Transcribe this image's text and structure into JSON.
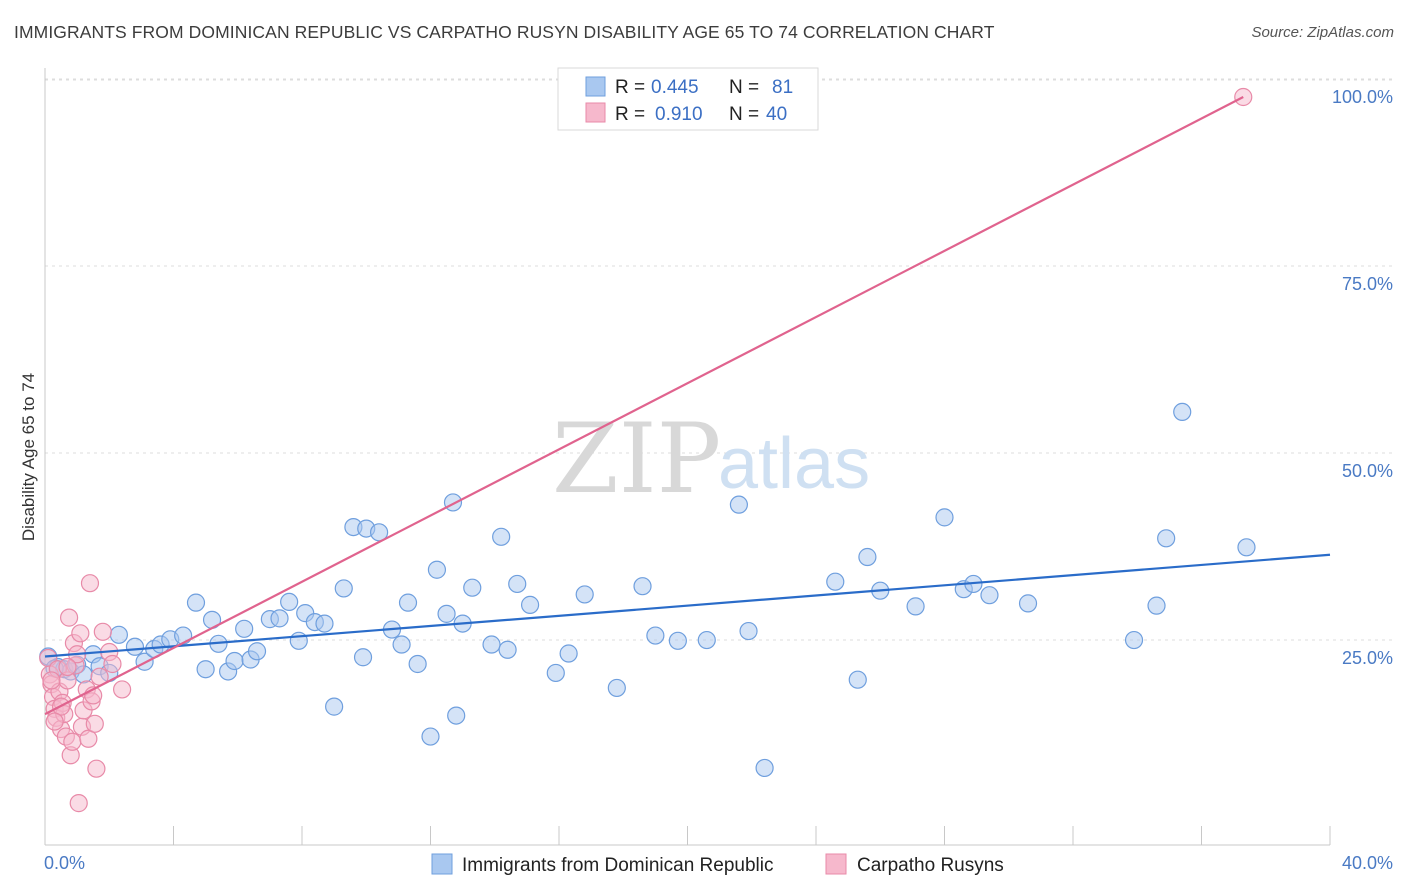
{
  "title": "IMMIGRANTS FROM DOMINICAN REPUBLIC VS CARPATHO RUSYN DISABILITY AGE 65 TO 74 CORRELATION CHART",
  "source": "Source: ZipAtlas.com",
  "watermark": {
    "zip": "ZIP",
    "atlas": "atlas"
  },
  "legend": {
    "rows": [
      {
        "r_label": "R = ",
        "r_value": "0.445",
        "n_label": "N = ",
        "n_value": "81",
        "color": "#a9c8f0"
      },
      {
        "r_label": "R = ",
        "r_value": "0.910",
        "n_label": "N = ",
        "n_value": "40",
        "color": "#f6b8cc"
      }
    ]
  },
  "bottom_legend": [
    {
      "label": "Immigrants from Dominican Republic",
      "color": "#a9c8f0"
    },
    {
      "label": "Carpatho Rusyns",
      "color": "#f6b8cc"
    }
  ],
  "chart_data": {
    "type": "scatter",
    "ylabel": "Disability Age 65 to 74",
    "xlabel": "",
    "xlim": [
      0,
      40
    ],
    "ylim": [
      0,
      100
    ],
    "x_tick_labels": [
      "0.0%",
      "40.0%"
    ],
    "y_ticks": [
      25,
      50,
      75,
      100
    ],
    "y_tick_labels": [
      "25.0%",
      "50.0%",
      "75.0%",
      "100.0%"
    ],
    "grid": "horizontal dashed",
    "series": [
      {
        "name": "Immigrants from Dominican Republic",
        "color": "#a9c8f0",
        "stroke": "#6f9fde",
        "trend_color": "#2a6cc9",
        "trend": {
          "x": [
            0,
            40
          ],
          "y": [
            25.2,
            38.8
          ]
        },
        "points": [
          [
            0.1,
            25.2
          ],
          [
            0.4,
            23.8
          ],
          [
            0.6,
            23.5
          ],
          [
            0.8,
            23.2
          ],
          [
            1.0,
            24.1
          ],
          [
            1.2,
            22.8
          ],
          [
            1.5,
            25.5
          ],
          [
            1.7,
            23.9
          ],
          [
            2.0,
            23.0
          ],
          [
            2.3,
            28.1
          ],
          [
            2.8,
            26.5
          ],
          [
            3.1,
            24.5
          ],
          [
            3.4,
            26.2
          ],
          [
            3.6,
            26.8
          ],
          [
            3.9,
            27.5
          ],
          [
            4.3,
            28.0
          ],
          [
            4.7,
            32.4
          ],
          [
            5.0,
            23.5
          ],
          [
            5.2,
            30.1
          ],
          [
            5.4,
            26.9
          ],
          [
            5.7,
            23.2
          ],
          [
            5.9,
            24.6
          ],
          [
            6.2,
            28.9
          ],
          [
            6.4,
            24.8
          ],
          [
            6.6,
            25.9
          ],
          [
            7.0,
            30.2
          ],
          [
            7.3,
            30.3
          ],
          [
            7.6,
            32.5
          ],
          [
            7.9,
            27.3
          ],
          [
            8.1,
            31.0
          ],
          [
            8.4,
            29.8
          ],
          [
            8.7,
            29.6
          ],
          [
            9.0,
            18.5
          ],
          [
            9.3,
            34.3
          ],
          [
            9.6,
            42.5
          ],
          [
            10.0,
            42.3
          ],
          [
            10.4,
            41.8
          ],
          [
            9.9,
            25.1
          ],
          [
            10.8,
            28.8
          ],
          [
            11.1,
            26.8
          ],
          [
            11.3,
            32.4
          ],
          [
            11.6,
            24.2
          ],
          [
            12.0,
            14.5
          ],
          [
            12.2,
            36.8
          ],
          [
            12.5,
            30.9
          ],
          [
            12.8,
            17.3
          ],
          [
            13.0,
            29.6
          ],
          [
            13.3,
            34.4
          ],
          [
            13.9,
            26.8
          ],
          [
            14.2,
            41.2
          ],
          [
            14.7,
            34.9
          ],
          [
            14.4,
            26.1
          ],
          [
            15.1,
            32.1
          ],
          [
            15.9,
            23.0
          ],
          [
            16.3,
            25.6
          ],
          [
            16.8,
            33.5
          ],
          [
            17.8,
            21.0
          ],
          [
            18.6,
            34.6
          ],
          [
            19.0,
            28.0
          ],
          [
            19.7,
            27.3
          ],
          [
            20.6,
            27.4
          ],
          [
            21.6,
            45.5
          ],
          [
            21.9,
            28.6
          ],
          [
            22.4,
            10.3
          ],
          [
            24.6,
            35.2
          ],
          [
            25.3,
            22.1
          ],
          [
            25.6,
            38.5
          ],
          [
            26.0,
            34.0
          ],
          [
            27.1,
            31.9
          ],
          [
            28.0,
            43.8
          ],
          [
            28.6,
            34.2
          ],
          [
            28.9,
            34.9
          ],
          [
            29.4,
            33.4
          ],
          [
            30.6,
            32.3
          ],
          [
            33.9,
            27.4
          ],
          [
            34.6,
            32.0
          ],
          [
            34.9,
            41.0
          ],
          [
            35.4,
            57.9
          ],
          [
            37.4,
            39.8
          ],
          [
            12.7,
            45.8
          ],
          [
            0.3,
            23.6
          ]
        ]
      },
      {
        "name": "Carpatho Rusyns",
        "color": "#f6b8cc",
        "stroke": "#e88aa8",
        "trend_color": "#e0638e",
        "trend": {
          "x": [
            0,
            37.3
          ],
          "y": [
            17.5,
            100
          ]
        },
        "points": [
          [
            0.1,
            25.0
          ],
          [
            0.15,
            22.8
          ],
          [
            0.2,
            21.5
          ],
          [
            0.25,
            19.8
          ],
          [
            0.3,
            18.2
          ],
          [
            0.35,
            17.0
          ],
          [
            0.4,
            23.5
          ],
          [
            0.45,
            20.5
          ],
          [
            0.5,
            15.5
          ],
          [
            0.55,
            19.0
          ],
          [
            0.6,
            17.5
          ],
          [
            0.65,
            14.5
          ],
          [
            0.7,
            22.0
          ],
          [
            0.75,
            30.4
          ],
          [
            0.8,
            12.0
          ],
          [
            0.85,
            13.8
          ],
          [
            0.9,
            27.0
          ],
          [
            0.95,
            24.0
          ],
          [
            1.0,
            25.5
          ],
          [
            1.05,
            5.6
          ],
          [
            1.1,
            28.3
          ],
          [
            1.15,
            15.8
          ],
          [
            1.2,
            18.0
          ],
          [
            1.3,
            20.8
          ],
          [
            1.35,
            14.2
          ],
          [
            1.4,
            35.0
          ],
          [
            1.45,
            19.2
          ],
          [
            1.5,
            20.0
          ],
          [
            1.55,
            16.2
          ],
          [
            1.6,
            10.2
          ],
          [
            1.7,
            22.5
          ],
          [
            1.8,
            28.5
          ],
          [
            2.0,
            25.8
          ],
          [
            2.1,
            24.2
          ],
          [
            2.4,
            20.8
          ],
          [
            0.2,
            22.0
          ],
          [
            0.5,
            18.5
          ],
          [
            0.7,
            23.8
          ],
          [
            0.3,
            16.5
          ],
          [
            37.3,
            100.0
          ]
        ]
      }
    ]
  }
}
